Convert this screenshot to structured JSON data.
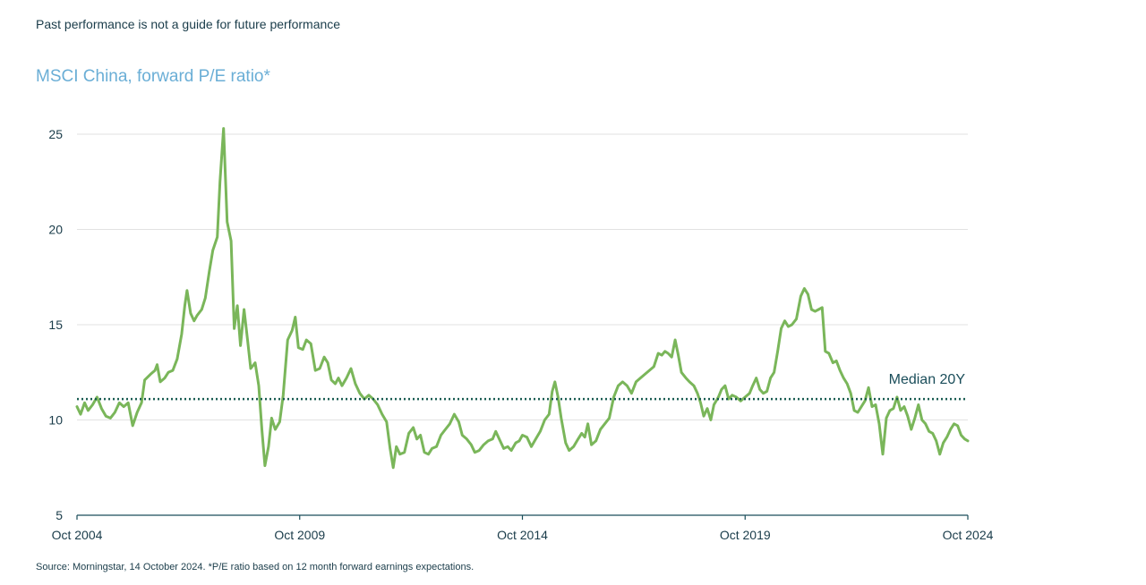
{
  "disclaimer": "Past performance is not a guide for future performance",
  "source": "Source: Morningstar, 14 October 2024. *P/E ratio based on 12 month forward earnings expectations.",
  "colors": {
    "line": "#7ab65a",
    "median": "#1a5c52",
    "grid": "#e2e2e2",
    "axis": "#1a4d5a",
    "title": "#6aaed6"
  },
  "chart_data": {
    "type": "line",
    "title": "MSCI China, forward P/E ratio*",
    "xlabel": "",
    "ylabel": "",
    "ylim": [
      5,
      25
    ],
    "yticks": [
      5,
      10,
      15,
      20,
      25
    ],
    "xlim": [
      2004.75,
      2024.75
    ],
    "xticks": [
      {
        "x": 2004.75,
        "label": "Oct 2004"
      },
      {
        "x": 2009.75,
        "label": "Oct 2009"
      },
      {
        "x": 2014.75,
        "label": "Oct 2014"
      },
      {
        "x": 2019.75,
        "label": "Oct 2019"
      },
      {
        "x": 2024.75,
        "label": "Oct 2024"
      }
    ],
    "grid": true,
    "legend": "none",
    "median": {
      "value": 11.1,
      "label": "Median 20Y"
    },
    "series": [
      {
        "points": [
          [
            2004.75,
            10.7
          ],
          [
            2004.83,
            10.3
          ],
          [
            2004.92,
            10.9
          ],
          [
            2005.0,
            10.5
          ],
          [
            2005.1,
            10.8
          ],
          [
            2005.2,
            11.2
          ],
          [
            2005.3,
            10.6
          ],
          [
            2005.4,
            10.2
          ],
          [
            2005.5,
            10.1
          ],
          [
            2005.6,
            10.4
          ],
          [
            2005.7,
            10.9
          ],
          [
            2005.8,
            10.7
          ],
          [
            2005.9,
            10.9
          ],
          [
            2006.0,
            9.7
          ],
          [
            2006.1,
            10.4
          ],
          [
            2006.2,
            10.9
          ],
          [
            2006.27,
            12.1
          ],
          [
            2006.4,
            12.4
          ],
          [
            2006.5,
            12.6
          ],
          [
            2006.55,
            12.9
          ],
          [
            2006.62,
            12.0
          ],
          [
            2006.72,
            12.2
          ],
          [
            2006.8,
            12.5
          ],
          [
            2006.9,
            12.6
          ],
          [
            2007.0,
            13.2
          ],
          [
            2007.1,
            14.5
          ],
          [
            2007.17,
            16.0
          ],
          [
            2007.22,
            16.8
          ],
          [
            2007.3,
            15.6
          ],
          [
            2007.38,
            15.2
          ],
          [
            2007.45,
            15.5
          ],
          [
            2007.55,
            15.8
          ],
          [
            2007.63,
            16.4
          ],
          [
            2007.72,
            17.8
          ],
          [
            2007.8,
            18.9
          ],
          [
            2007.9,
            19.6
          ],
          [
            2007.96,
            22.5
          ],
          [
            2008.04,
            25.3
          ],
          [
            2008.12,
            20.4
          ],
          [
            2008.21,
            19.4
          ],
          [
            2008.28,
            14.8
          ],
          [
            2008.35,
            16.0
          ],
          [
            2008.42,
            13.9
          ],
          [
            2008.5,
            15.8
          ],
          [
            2008.58,
            14.2
          ],
          [
            2008.65,
            12.7
          ],
          [
            2008.75,
            13.0
          ],
          [
            2008.83,
            11.8
          ],
          [
            2008.9,
            9.5
          ],
          [
            2008.97,
            7.6
          ],
          [
            2009.05,
            8.6
          ],
          [
            2009.12,
            10.1
          ],
          [
            2009.2,
            9.5
          ],
          [
            2009.3,
            9.9
          ],
          [
            2009.38,
            11.3
          ],
          [
            2009.48,
            14.2
          ],
          [
            2009.58,
            14.7
          ],
          [
            2009.65,
            15.4
          ],
          [
            2009.72,
            13.8
          ],
          [
            2009.82,
            13.7
          ],
          [
            2009.9,
            14.2
          ],
          [
            2010.0,
            14.0
          ],
          [
            2010.1,
            12.6
          ],
          [
            2010.2,
            12.7
          ],
          [
            2010.3,
            13.3
          ],
          [
            2010.38,
            13.0
          ],
          [
            2010.46,
            12.1
          ],
          [
            2010.55,
            11.9
          ],
          [
            2010.62,
            12.2
          ],
          [
            2010.7,
            11.8
          ],
          [
            2010.8,
            12.2
          ],
          [
            2010.9,
            12.7
          ],
          [
            2011.0,
            11.9
          ],
          [
            2011.1,
            11.4
          ],
          [
            2011.2,
            11.1
          ],
          [
            2011.3,
            11.3
          ],
          [
            2011.4,
            11.1
          ],
          [
            2011.5,
            10.8
          ],
          [
            2011.6,
            10.3
          ],
          [
            2011.7,
            9.9
          ],
          [
            2011.78,
            8.5
          ],
          [
            2011.85,
            7.5
          ],
          [
            2011.92,
            8.6
          ],
          [
            2012.0,
            8.2
          ],
          [
            2012.1,
            8.3
          ],
          [
            2012.2,
            9.3
          ],
          [
            2012.3,
            9.6
          ],
          [
            2012.38,
            9.0
          ],
          [
            2012.46,
            9.2
          ],
          [
            2012.55,
            8.3
          ],
          [
            2012.64,
            8.2
          ],
          [
            2012.72,
            8.5
          ],
          [
            2012.82,
            8.6
          ],
          [
            2012.92,
            9.2
          ],
          [
            2013.02,
            9.5
          ],
          [
            2013.12,
            9.8
          ],
          [
            2013.22,
            10.3
          ],
          [
            2013.32,
            9.9
          ],
          [
            2013.4,
            9.2
          ],
          [
            2013.5,
            9.0
          ],
          [
            2013.6,
            8.7
          ],
          [
            2013.68,
            8.3
          ],
          [
            2013.78,
            8.4
          ],
          [
            2013.88,
            8.7
          ],
          [
            2013.98,
            8.9
          ],
          [
            2014.08,
            9.0
          ],
          [
            2014.15,
            9.4
          ],
          [
            2014.25,
            8.9
          ],
          [
            2014.33,
            8.5
          ],
          [
            2014.42,
            8.6
          ],
          [
            2014.5,
            8.4
          ],
          [
            2014.6,
            8.8
          ],
          [
            2014.68,
            8.9
          ],
          [
            2014.75,
            9.2
          ],
          [
            2014.85,
            9.1
          ],
          [
            2014.95,
            8.6
          ],
          [
            2015.05,
            9.0
          ],
          [
            2015.15,
            9.4
          ],
          [
            2015.25,
            10.0
          ],
          [
            2015.35,
            10.3
          ],
          [
            2015.42,
            11.5
          ],
          [
            2015.48,
            12.0
          ],
          [
            2015.55,
            11.2
          ],
          [
            2015.62,
            10.1
          ],
          [
            2015.72,
            8.8
          ],
          [
            2015.8,
            8.4
          ],
          [
            2015.9,
            8.6
          ],
          [
            2016.0,
            9.0
          ],
          [
            2016.08,
            9.3
          ],
          [
            2016.15,
            9.1
          ],
          [
            2016.22,
            9.8
          ],
          [
            2016.3,
            8.7
          ],
          [
            2016.4,
            8.9
          ],
          [
            2016.5,
            9.5
          ],
          [
            2016.6,
            9.8
          ],
          [
            2016.7,
            10.1
          ],
          [
            2016.8,
            11.2
          ],
          [
            2016.9,
            11.8
          ],
          [
            2017.0,
            12.0
          ],
          [
            2017.1,
            11.8
          ],
          [
            2017.2,
            11.4
          ],
          [
            2017.3,
            12.0
          ],
          [
            2017.4,
            12.2
          ],
          [
            2017.5,
            12.4
          ],
          [
            2017.6,
            12.6
          ],
          [
            2017.7,
            12.8
          ],
          [
            2017.8,
            13.5
          ],
          [
            2017.88,
            13.4
          ],
          [
            2017.95,
            13.6
          ],
          [
            2018.02,
            13.5
          ],
          [
            2018.1,
            13.3
          ],
          [
            2018.18,
            14.2
          ],
          [
            2018.25,
            13.4
          ],
          [
            2018.32,
            12.5
          ],
          [
            2018.42,
            12.2
          ],
          [
            2018.5,
            12.0
          ],
          [
            2018.6,
            11.8
          ],
          [
            2018.68,
            11.4
          ],
          [
            2018.75,
            10.9
          ],
          [
            2018.82,
            10.2
          ],
          [
            2018.9,
            10.6
          ],
          [
            2018.98,
            10.0
          ],
          [
            2019.05,
            10.8
          ],
          [
            2019.15,
            11.2
          ],
          [
            2019.22,
            11.6
          ],
          [
            2019.3,
            11.8
          ],
          [
            2019.38,
            11.1
          ],
          [
            2019.46,
            11.3
          ],
          [
            2019.55,
            11.2
          ],
          [
            2019.65,
            11.0
          ],
          [
            2019.75,
            11.2
          ],
          [
            2019.85,
            11.4
          ],
          [
            2019.92,
            11.8
          ],
          [
            2020.0,
            12.2
          ],
          [
            2020.08,
            11.6
          ],
          [
            2020.16,
            11.4
          ],
          [
            2020.24,
            11.5
          ],
          [
            2020.32,
            12.2
          ],
          [
            2020.4,
            12.5
          ],
          [
            2020.48,
            13.6
          ],
          [
            2020.56,
            14.8
          ],
          [
            2020.64,
            15.2
          ],
          [
            2020.72,
            14.9
          ],
          [
            2020.8,
            15.0
          ],
          [
            2020.9,
            15.3
          ],
          [
            2021.0,
            16.5
          ],
          [
            2021.08,
            16.9
          ],
          [
            2021.16,
            16.6
          ],
          [
            2021.24,
            15.8
          ],
          [
            2021.32,
            15.7
          ],
          [
            2021.4,
            15.8
          ],
          [
            2021.48,
            15.9
          ],
          [
            2021.55,
            13.6
          ],
          [
            2021.63,
            13.5
          ],
          [
            2021.72,
            13.0
          ],
          [
            2021.8,
            13.1
          ],
          [
            2021.88,
            12.6
          ],
          [
            2021.96,
            12.2
          ],
          [
            2022.04,
            11.9
          ],
          [
            2022.12,
            11.4
          ],
          [
            2022.2,
            10.5
          ],
          [
            2022.28,
            10.4
          ],
          [
            2022.36,
            10.7
          ],
          [
            2022.44,
            11.0
          ],
          [
            2022.52,
            11.7
          ],
          [
            2022.6,
            10.7
          ],
          [
            2022.68,
            10.8
          ],
          [
            2022.76,
            9.8
          ],
          [
            2022.84,
            8.2
          ],
          [
            2022.92,
            10.1
          ],
          [
            2023.0,
            10.5
          ],
          [
            2023.08,
            10.6
          ],
          [
            2023.16,
            11.2
          ],
          [
            2023.24,
            10.5
          ],
          [
            2023.32,
            10.7
          ],
          [
            2023.4,
            10.2
          ],
          [
            2023.48,
            9.5
          ],
          [
            2023.56,
            10.1
          ],
          [
            2023.64,
            10.8
          ],
          [
            2023.72,
            10.0
          ],
          [
            2023.8,
            9.8
          ],
          [
            2023.88,
            9.4
          ],
          [
            2023.96,
            9.3
          ],
          [
            2024.04,
            8.9
          ],
          [
            2024.12,
            8.2
          ],
          [
            2024.2,
            8.8
          ],
          [
            2024.28,
            9.1
          ],
          [
            2024.36,
            9.5
          ],
          [
            2024.44,
            9.8
          ],
          [
            2024.52,
            9.7
          ],
          [
            2024.6,
            9.2
          ],
          [
            2024.68,
            9.0
          ],
          [
            2024.75,
            8.9
          ]
        ]
      }
    ]
  }
}
